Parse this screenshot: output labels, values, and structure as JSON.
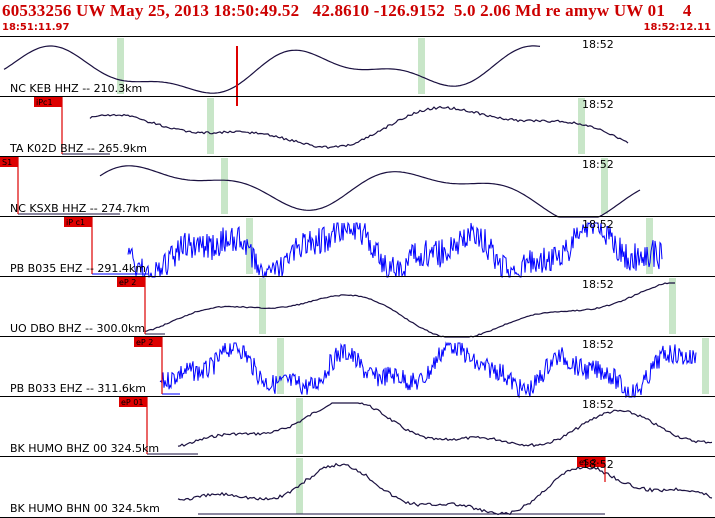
{
  "header": {
    "title": "60533256 UW May 25, 2013 18:50:49.52   42.8610 -126.9152  5.0 2.06 Md re amyw UW 01    4",
    "start_time": "18:51:11.97",
    "end_time": "18:52:12.11"
  },
  "colors": {
    "header_text": "#cc0000",
    "trace_black": "#000000",
    "trace_blue": "#0000ff",
    "pick_red": "#dd0000",
    "marker_green": "#c8e6c8",
    "panel_border": "#000000"
  },
  "traces": [
    {
      "label": "NC KEB HHZ -- 210.3km",
      "time": "18:52",
      "color": "black",
      "pick": "",
      "pick_line_height": "short"
    },
    {
      "label": "TA K02D BHZ -- 265.9km",
      "time": "18:52",
      "color": "black",
      "pick": "iPc1",
      "pick_line_height": "full"
    },
    {
      "label": "NC KSXB HHZ -- 274.7km",
      "time": "18:52",
      "color": "black",
      "pick": "S1",
      "pick_line_height": "full"
    },
    {
      "label": "PB B035 EHZ -- 291.4km",
      "time": "18:52",
      "color": "blue",
      "pick": "iP c1",
      "pick_line_height": "full"
    },
    {
      "label": "UO DBO BHZ -- 300.0km",
      "time": "18:52",
      "color": "black",
      "pick": "eP 2",
      "pick_line_height": "full"
    },
    {
      "label": "PB B033 EHZ -- 311.6km",
      "time": "18:52",
      "color": "blue",
      "pick": "eP 2",
      "pick_line_height": "full"
    },
    {
      "label": "BK HUMO BHZ 00 324.5km",
      "time": "18:52",
      "color": "black",
      "pick": "eP 01",
      "pick_line_height": "full"
    },
    {
      "label": "BK HUMO BHN 00 324.5km",
      "time": "18:52",
      "color": "black",
      "pick": "eS 2",
      "pick_line_height": "short"
    }
  ]
}
